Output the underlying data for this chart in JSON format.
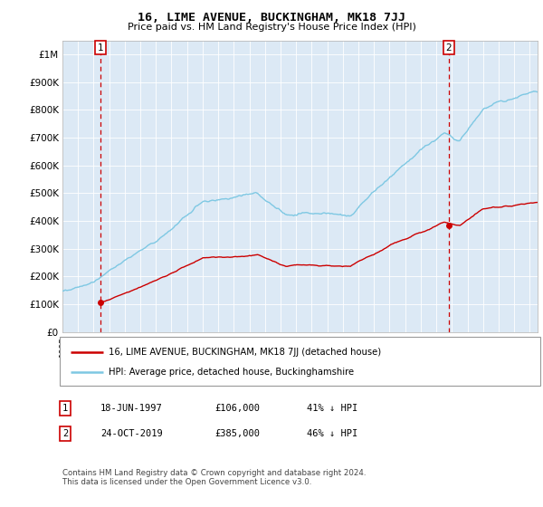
{
  "title": "16, LIME AVENUE, BUCKINGHAM, MK18 7JJ",
  "subtitle": "Price paid vs. HM Land Registry's House Price Index (HPI)",
  "legend_line1": "16, LIME AVENUE, BUCKINGHAM, MK18 7JJ (detached house)",
  "legend_line2": "HPI: Average price, detached house, Buckinghamshire",
  "footnote": "Contains HM Land Registry data © Crown copyright and database right 2024.\nThis data is licensed under the Open Government Licence v3.0.",
  "transaction1_date": "18-JUN-1997",
  "transaction1_price": 106000,
  "transaction1_label": "41% ↓ HPI",
  "transaction1_x": 1997.46,
  "transaction2_date": "24-OCT-2019",
  "transaction2_price": 385000,
  "transaction2_label": "46% ↓ HPI",
  "transaction2_x": 2019.8,
  "hpi_color": "#7ec8e3",
  "price_color": "#cc0000",
  "dashed_color": "#cc0000",
  "background_color": "#dce9f5",
  "ylim": [
    0,
    1050000
  ],
  "xlim_start": 1995.0,
  "xlim_end": 2025.5,
  "yticks": [
    0,
    100000,
    200000,
    300000,
    400000,
    500000,
    600000,
    700000,
    800000,
    900000,
    1000000
  ],
  "ytick_labels": [
    "£0",
    "£100K",
    "£200K",
    "£300K",
    "£400K",
    "£500K",
    "£600K",
    "£700K",
    "£800K",
    "£900K",
    "£1M"
  ],
  "xticks": [
    1995,
    1996,
    1997,
    1998,
    1999,
    2000,
    2001,
    2002,
    2003,
    2004,
    2005,
    2006,
    2007,
    2008,
    2009,
    2010,
    2011,
    2012,
    2013,
    2014,
    2015,
    2016,
    2017,
    2018,
    2019,
    2020,
    2021,
    2022,
    2023,
    2024,
    2025
  ]
}
